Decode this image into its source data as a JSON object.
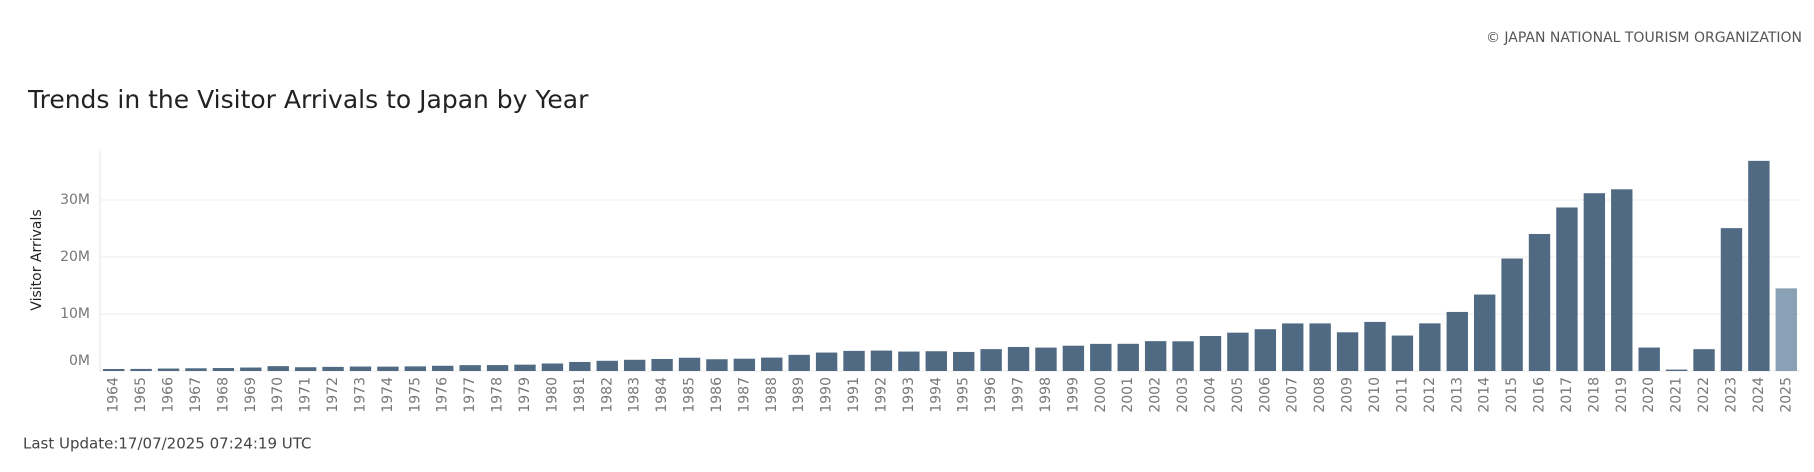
{
  "chart_data": {
    "type": "bar",
    "source": "© JAPAN NATIONAL TOURISM ORGANIZATION",
    "title": "Trends in the Visitor Arrivals to Japan by Year",
    "y_label": "Visitor Arrivals",
    "footnote": "Last Update:17/07/2025 07:24:19 UTC",
    "categories": [
      "1964",
      "1965",
      "1966",
      "1967",
      "1968",
      "1969",
      "1970",
      "1971",
      "1972",
      "1973",
      "1974",
      "1975",
      "1976",
      "1977",
      "1978",
      "1979",
      "1980",
      "1981",
      "1982",
      "1983",
      "1984",
      "1985",
      "1986",
      "1987",
      "1988",
      "1989",
      "1990",
      "1991",
      "1992",
      "1993",
      "1994",
      "1995",
      "1996",
      "1997",
      "1998",
      "1999",
      "2000",
      "2001",
      "2002",
      "2003",
      "2004",
      "2005",
      "2006",
      "2007",
      "2008",
      "2009",
      "2010",
      "2011",
      "2012",
      "2013",
      "2014",
      "2015",
      "2016",
      "2017",
      "2018",
      "2019",
      "2020",
      "2021",
      "2022",
      "2023",
      "2024",
      "2025"
    ],
    "values": [
      352832,
      366649,
      432937,
      476771,
      519004,
      608741,
      854419,
      660715,
      723744,
      784691,
      764246,
      811672,
      914772,
      1028140,
      1038876,
      1112606,
      1316632,
      1583043,
      1793164,
      1968461,
      2110346,
      2327047,
      2061526,
      2154864,
      2355412,
      2835064,
      3235860,
      3532651,
      3581540,
      3410447,
      3468055,
      3345274,
      3837113,
      4218208,
      4106057,
      4437863,
      4757146,
      4771555,
      5238963,
      5211725,
      6137905,
      6727926,
      7334077,
      8346969,
      8350835,
      6789658,
      8611175,
      6218752,
      8358105,
      10363904,
      13413467,
      19737409,
      24039700,
      28691073,
      31191856,
      31882049,
      4115828,
      245862,
      3832110,
      25066350,
      36869900,
      14500000
    ],
    "color": "#4f6a82",
    "colors": [
      "#4f6a82",
      "#4f6a82",
      "#4f6a82",
      "#4f6a82",
      "#4f6a82",
      "#4f6a82",
      "#4f6a82",
      "#4f6a82",
      "#4f6a82",
      "#4f6a82",
      "#4f6a82",
      "#4f6a82",
      "#4f6a82",
      "#4f6a82",
      "#4f6a82",
      "#4f6a82",
      "#4f6a82",
      "#4f6a82",
      "#4f6a82",
      "#4f6a82",
      "#4f6a82",
      "#4f6a82",
      "#4f6a82",
      "#4f6a82",
      "#4f6a82",
      "#4f6a82",
      "#4f6a82",
      "#4f6a82",
      "#4f6a82",
      "#4f6a82",
      "#4f6a82",
      "#4f6a82",
      "#4f6a82",
      "#4f6a82",
      "#4f6a82",
      "#4f6a82",
      "#4f6a82",
      "#4f6a82",
      "#4f6a82",
      "#4f6a82",
      "#4f6a82",
      "#4f6a82",
      "#4f6a82",
      "#4f6a82",
      "#4f6a82",
      "#4f6a82",
      "#4f6a82",
      "#4f6a82",
      "#4f6a82",
      "#4f6a82",
      "#4f6a82",
      "#4f6a82",
      "#4f6a82",
      "#4f6a82",
      "#4f6a82",
      "#4f6a82",
      "#4f6a82",
      "#4f6a82",
      "#4f6a82",
      "#4f6a82",
      "#4f6a82",
      "#8aa0b4"
    ],
    "ylim": [
      0,
      38600000
    ],
    "yticks": [
      {
        "value": 0,
        "label": "0M"
      },
      {
        "value": 10000000,
        "label": "10M"
      },
      {
        "value": 20000000,
        "label": "20M"
      },
      {
        "value": 30000000,
        "label": "30M"
      }
    ],
    "grid": true
  }
}
